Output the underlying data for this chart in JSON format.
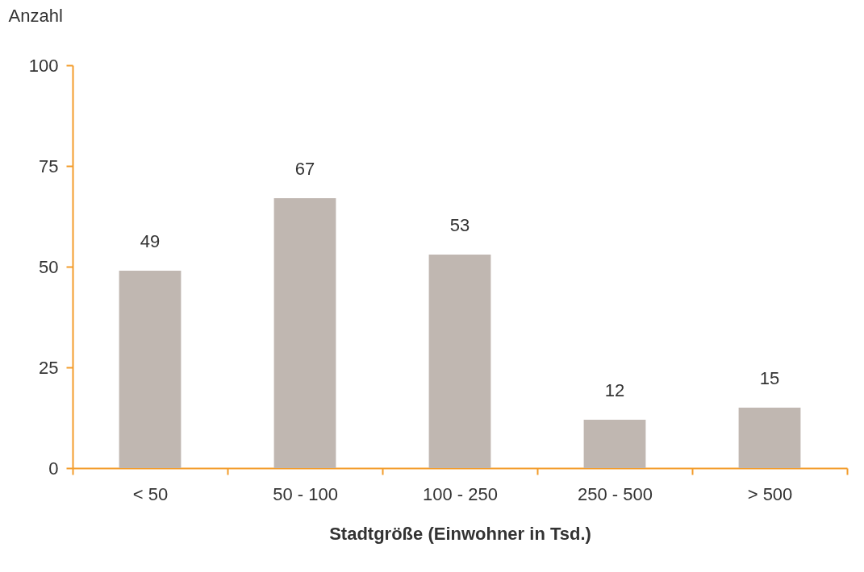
{
  "chart_data": {
    "type": "bar",
    "xlabel": "Stadtgröße (Einwohner in Tsd.)",
    "ylabel": "Anzahl",
    "categories": [
      "< 50",
      "50 - 100",
      "100 - 250",
      "250 - 500",
      "> 500"
    ],
    "values": [
      49,
      67,
      53,
      12,
      15
    ],
    "color": "#c0b7b1",
    "ylim": [
      0,
      100
    ],
    "yticks": [
      0,
      25,
      50,
      75,
      100
    ],
    "grid": false,
    "data_labels": true
  }
}
